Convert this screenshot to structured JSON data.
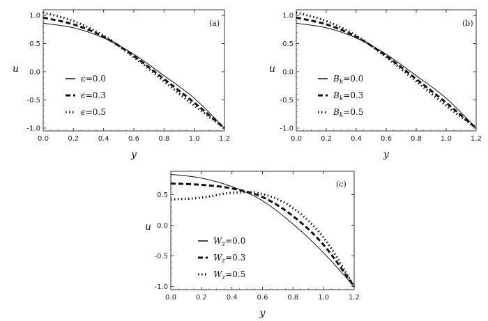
{
  "chart_data": [
    {
      "type": "line",
      "panel_label": "(a)",
      "xlabel": "y",
      "ylabel": "u",
      "xlim": [
        0.0,
        1.2
      ],
      "ylim": [
        -1.05,
        1.1
      ],
      "xticks": [
        "0.0",
        "0.2",
        "0.4",
        "0.6",
        "0.8",
        "1.0",
        "1.2"
      ],
      "yticks": [
        "-1.0",
        "-0.5",
        "0.0",
        "0.5",
        "1.0"
      ],
      "legend_position": "lower-left",
      "x": [
        0.0,
        0.2,
        0.4,
        0.6,
        0.8,
        1.0,
        1.2
      ],
      "series": [
        {
          "name": "ϵ=0.0",
          "style": "solid",
          "values": [
            0.86,
            0.78,
            0.6,
            0.31,
            -0.07,
            -0.47,
            -1.0
          ]
        },
        {
          "name": "ϵ=0.3",
          "style": "dashed",
          "values": [
            0.96,
            0.84,
            0.62,
            0.28,
            -0.13,
            -0.55,
            -1.0
          ]
        },
        {
          "name": "ϵ=0.5",
          "style": "dotted",
          "values": [
            1.05,
            0.9,
            0.64,
            0.26,
            -0.17,
            -0.6,
            -1.0
          ]
        }
      ]
    },
    {
      "type": "line",
      "panel_label": "(b)",
      "xlabel": "y",
      "ylabel": "u",
      "xlim": [
        0.0,
        1.2
      ],
      "ylim": [
        -1.05,
        1.1
      ],
      "xticks": [
        "0.0",
        "0.2",
        "0.4",
        "0.6",
        "0.8",
        "1.0",
        "1.2"
      ],
      "yticks": [
        "-1.0",
        "-0.5",
        "0.0",
        "0.5",
        "1.0"
      ],
      "legend_position": "lower-left",
      "x": [
        0.0,
        0.2,
        0.4,
        0.6,
        0.8,
        1.0,
        1.2
      ],
      "series": [
        {
          "name": "B_k=0.0",
          "style": "solid",
          "values": [
            0.86,
            0.78,
            0.6,
            0.31,
            -0.07,
            -0.47,
            -1.0
          ]
        },
        {
          "name": "B_k=0.3",
          "style": "dashed",
          "values": [
            0.96,
            0.84,
            0.62,
            0.28,
            -0.13,
            -0.55,
            -1.0
          ]
        },
        {
          "name": "B_k=0.5",
          "style": "dotted",
          "values": [
            1.05,
            0.9,
            0.64,
            0.26,
            -0.17,
            -0.6,
            -1.0
          ]
        }
      ]
    },
    {
      "type": "line",
      "panel_label": "(c)",
      "xlabel": "y",
      "ylabel": "u",
      "xlim": [
        0.0,
        1.2
      ],
      "ylim": [
        -1.05,
        0.88
      ],
      "xticks": [
        "0.0",
        "0.2",
        "0.4",
        "0.6",
        "0.8",
        "1.0",
        "1.2"
      ],
      "yticks": [
        "-1.0",
        "-0.5",
        "0.0",
        "0.5"
      ],
      "legend_position": "lower-left",
      "x": [
        0.0,
        0.2,
        0.4,
        0.6,
        0.8,
        1.0,
        1.2
      ],
      "series": [
        {
          "name": "W_z=0.0",
          "style": "solid",
          "values": [
            0.83,
            0.77,
            0.63,
            0.4,
            0.02,
            -0.45,
            -1.0
          ]
        },
        {
          "name": "W_z=0.3",
          "style": "dashed",
          "values": [
            0.68,
            0.66,
            0.6,
            0.46,
            0.15,
            -0.32,
            -1.0
          ]
        },
        {
          "name": "W_z=0.5",
          "style": "dotted",
          "values": [
            0.42,
            0.45,
            0.53,
            0.51,
            0.28,
            -0.2,
            -1.0
          ]
        }
      ]
    }
  ]
}
